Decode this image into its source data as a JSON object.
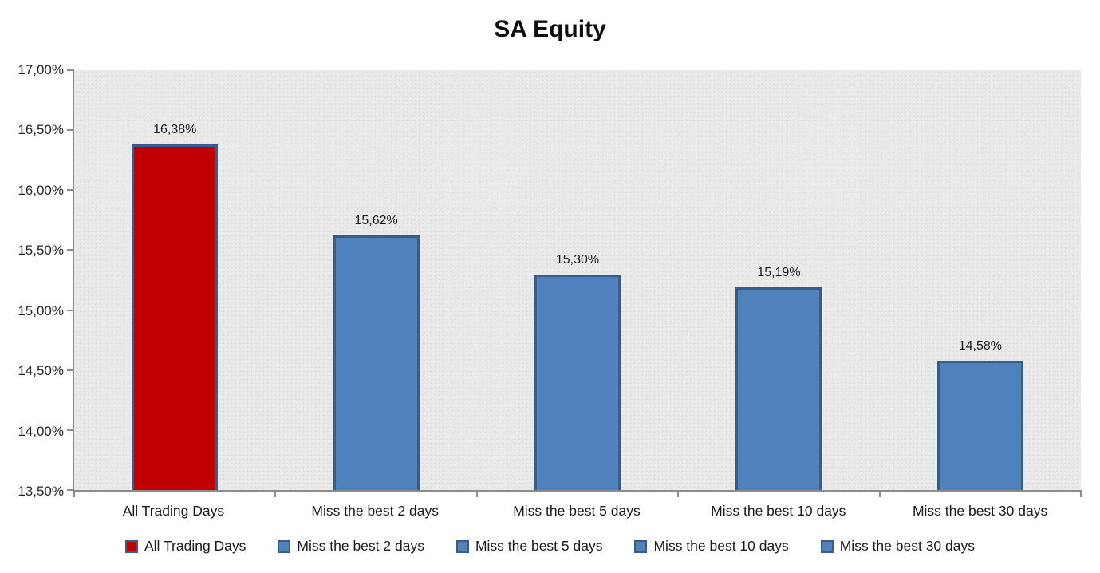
{
  "title": "SA Equity",
  "chart_data": {
    "type": "bar",
    "title": "SA Equity",
    "categories": [
      "All Trading Days",
      "Miss the best 2 days",
      "Miss the best 5 days",
      "Miss the best 10 days",
      "Miss the best 30 days"
    ],
    "values": [
      16.38,
      15.62,
      15.3,
      15.19,
      14.58
    ],
    "data_labels": [
      "16,38%",
      "15,62%",
      "15,30%",
      "15,19%",
      "14,58%"
    ],
    "xlabel": "",
    "ylabel": "",
    "ylim": [
      13.5,
      17.0
    ],
    "y_tick_step": 0.5,
    "y_tick_labels_top_to_bottom": [
      "17,00%",
      "16,50%",
      "16,00%",
      "15,50%",
      "15,00%",
      "14,50%",
      "14,00%",
      "13,50%"
    ],
    "grid": false,
    "legend_position": "bottom",
    "legend": [
      {
        "label": "All Trading Days",
        "color": "#c00000"
      },
      {
        "label": "Miss the best 2 days",
        "color": "#4f81bd"
      },
      {
        "label": "Miss the best 5 days",
        "color": "#4f81bd"
      },
      {
        "label": "Miss the best 10 days",
        "color": "#4f81bd"
      },
      {
        "label": "Miss the best 30 days",
        "color": "#4f81bd"
      }
    ],
    "bar_colors": [
      "#c00000",
      "#4f81bd",
      "#4f81bd",
      "#4f81bd",
      "#4f81bd"
    ],
    "bar_border_color": "#385d8a",
    "plot_background_color": "#eaeaea",
    "axis_line_color": "#8c8c8c"
  }
}
